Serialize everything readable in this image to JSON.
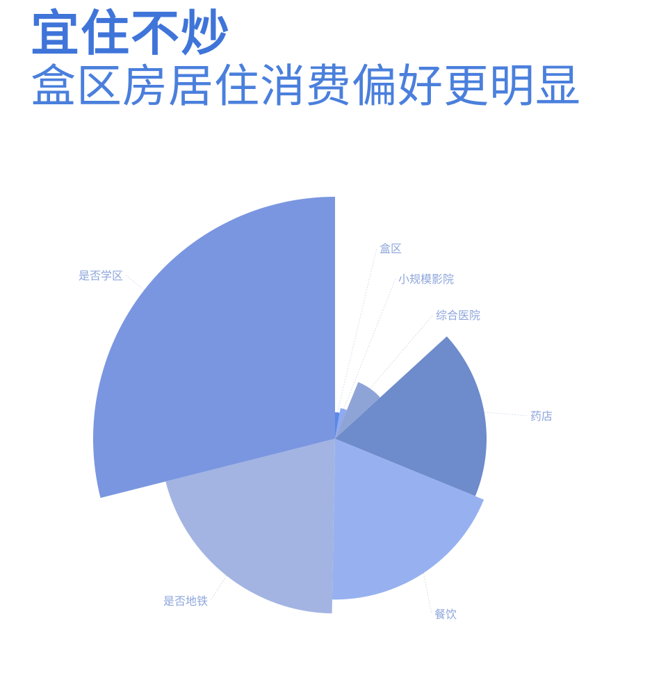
{
  "header": {
    "title": "宜住不炒",
    "subtitle": "盒区房居住消费偏好更明显"
  },
  "chart_data": {
    "type": "pie",
    "rose_type": "radius",
    "start_angle": "12 o'clock, clockwise",
    "categories": [
      "盒区",
      "小规模影院",
      "综合医院",
      "药店",
      "餐饮",
      "是否地铁",
      "是否学区"
    ],
    "values": [
      10,
      12,
      25,
      64,
      68,
      74,
      103
    ],
    "colors": [
      "#5d88e6",
      "#8eaaf0",
      "#8fa4d6",
      "#6e8bcb",
      "#97b1f0",
      "#a3b4e2",
      "#7a96e0"
    ],
    "label_color": "#8ea6dc",
    "legend": "none"
  }
}
